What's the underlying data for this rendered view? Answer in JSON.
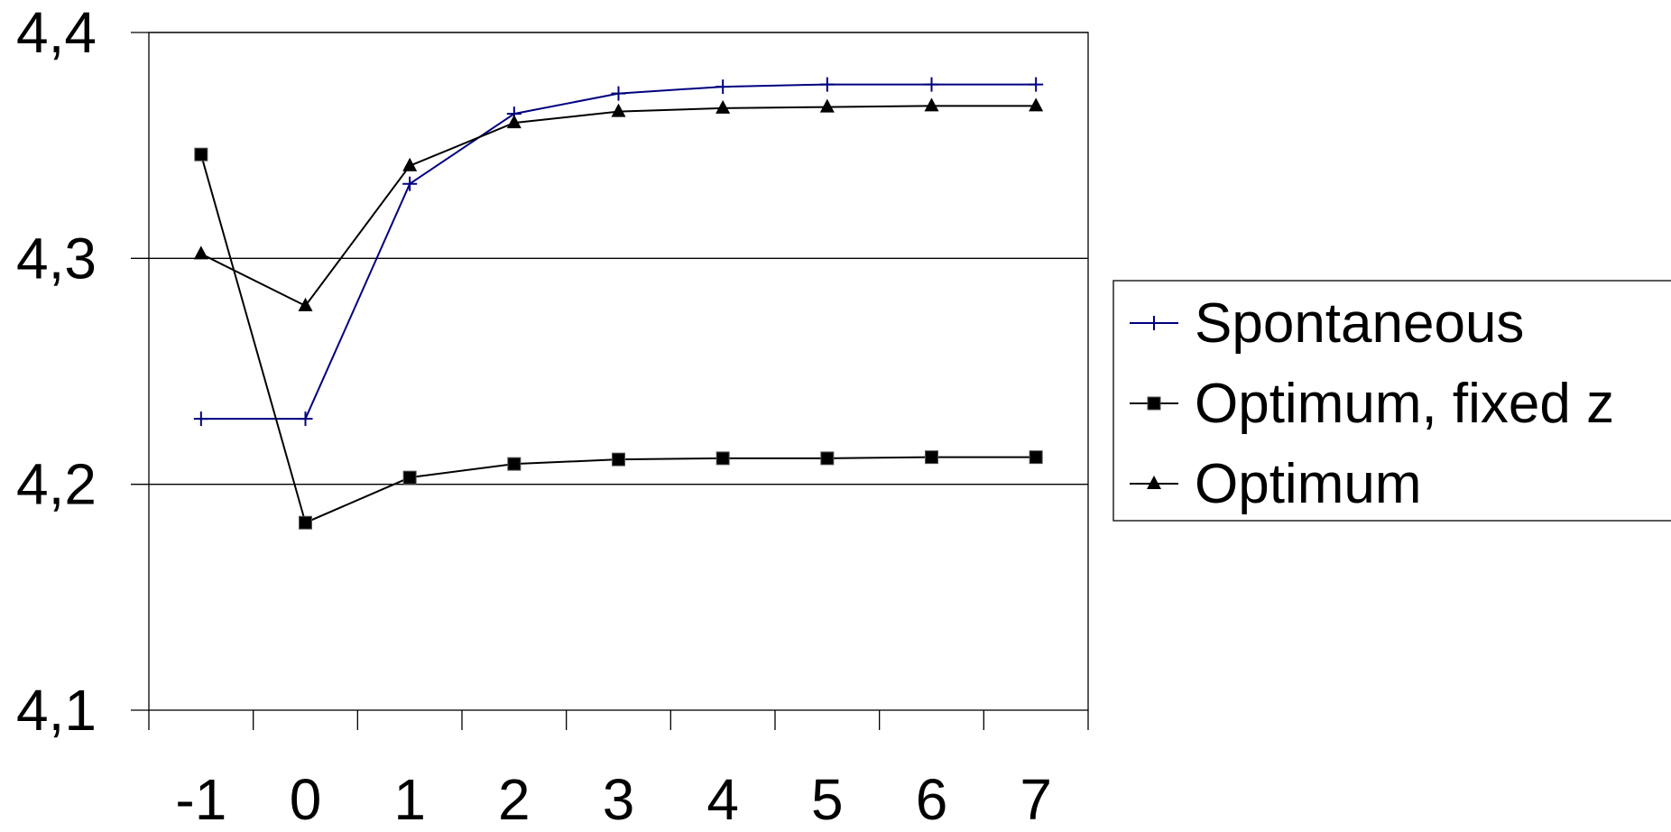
{
  "colors": {
    "background": "#ffffff",
    "axis": "#000000",
    "grid": "#000000"
  },
  "chart_data": {
    "type": "line",
    "title": "",
    "xlabel": "",
    "ylabel": "",
    "categories": [
      "-1",
      "0",
      "1",
      "2",
      "3",
      "4",
      "5",
      "6",
      "7"
    ],
    "ylim": [
      4.1,
      4.4
    ],
    "y_ticks": [
      4.1,
      4.2,
      4.3,
      4.4
    ],
    "y_tick_labels": [
      "4,1",
      "4,2",
      "4,3",
      "4,4"
    ],
    "grid": true,
    "legend_position": "right",
    "series": [
      {
        "name": "Spontaneous",
        "color": "#000080",
        "marker": "plus",
        "values": [
          4.229,
          4.229,
          4.333,
          4.364,
          4.373,
          4.376,
          4.377,
          4.377,
          4.377
        ]
      },
      {
        "name": "Optimum, fixed z",
        "color": "#000000",
        "marker": "square",
        "values": [
          4.346,
          4.183,
          4.203,
          4.209,
          4.211,
          4.2115,
          4.2115,
          4.212,
          4.212
        ]
      },
      {
        "name": "Optimum",
        "color": "#000000",
        "marker": "triangle",
        "values": [
          4.302,
          4.279,
          4.341,
          4.36,
          4.365,
          4.3665,
          4.367,
          4.3675,
          4.3675
        ]
      }
    ]
  }
}
